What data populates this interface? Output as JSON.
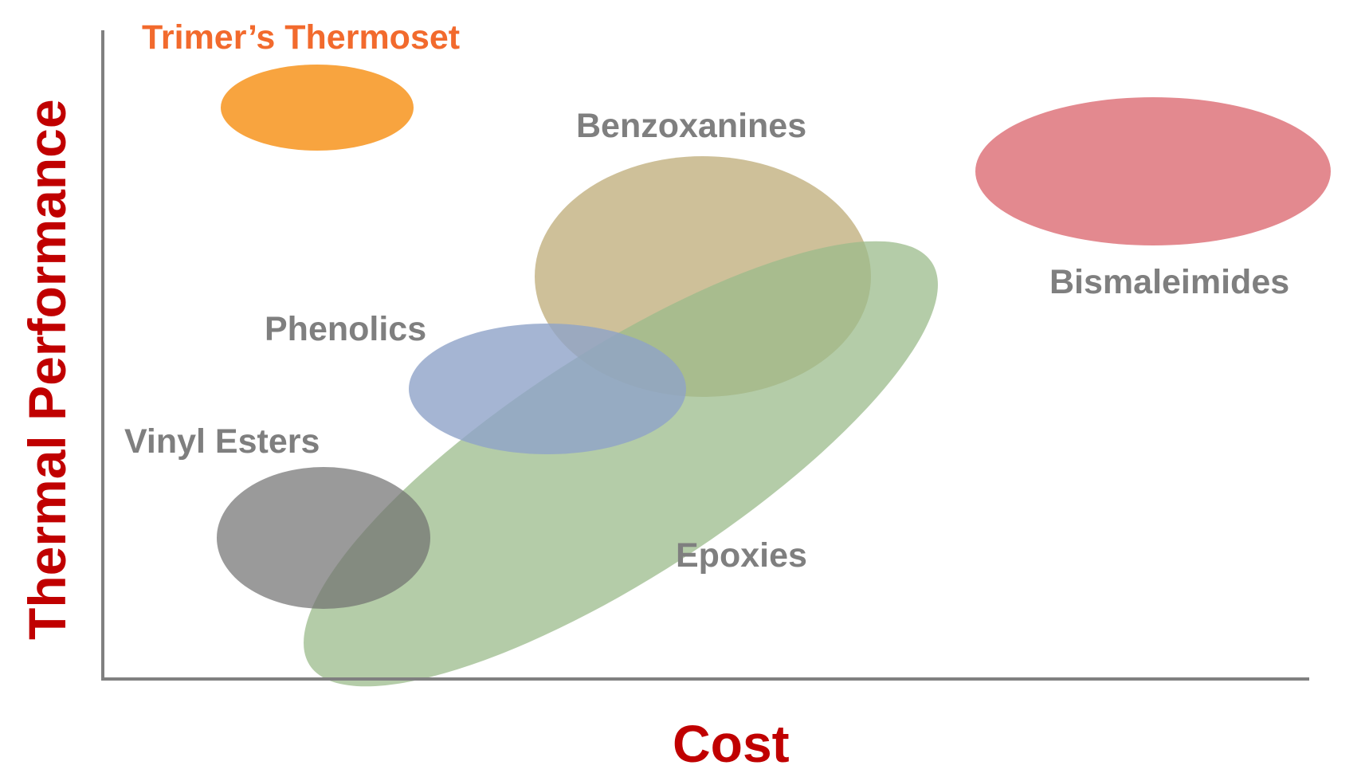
{
  "axes": {
    "x_title": "Cost",
    "y_title": "Thermal Performance",
    "title_color": "#c00000",
    "axis_color": "#808080"
  },
  "regions": [
    {
      "key": "trimers_thermoset",
      "label": "Trimer’s Thermoset",
      "color": "#f7941d",
      "label_color": "#f26a2d",
      "opacity": 0.85
    },
    {
      "key": "benzoxanines",
      "label": "Benzoxanines",
      "color": "#c2b07f",
      "label_color": "#7f7f7f",
      "opacity": 0.8
    },
    {
      "key": "bismaleimides",
      "label": "Bismaleimides",
      "color": "#dc6b73",
      "label_color": "#7f7f7f",
      "opacity": 0.8
    },
    {
      "key": "epoxies",
      "label": "Epoxies",
      "color": "#9bbb8b",
      "label_color": "#7f7f7f",
      "opacity": 0.75
    },
    {
      "key": "phenolics",
      "label": "Phenolics",
      "color": "#8ea3c8",
      "label_color": "#7f7f7f",
      "opacity": 0.8
    },
    {
      "key": "vinyl_esters",
      "label": "Vinyl Esters",
      "color": "#6f6f6f",
      "label_color": "#7f7f7f",
      "opacity": 0.7
    }
  ]
}
